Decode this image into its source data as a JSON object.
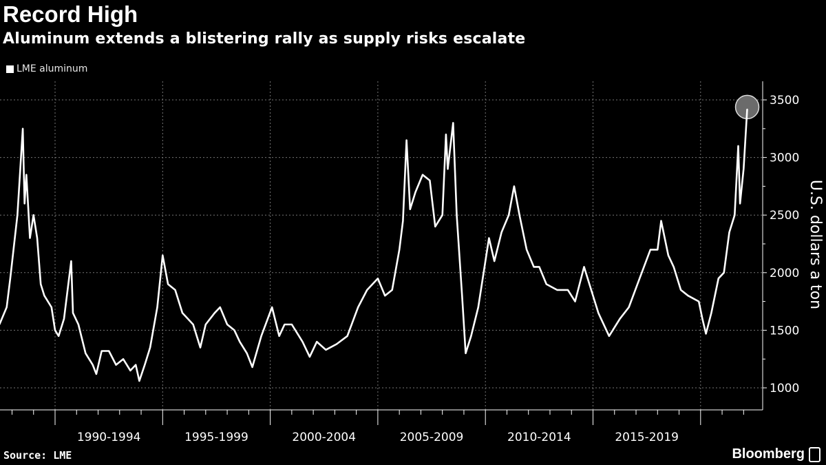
{
  "header": {
    "title": "Record High",
    "subtitle": "Aluminum extends a blistering rally as supply risks escalate"
  },
  "footer": {
    "source": "Source: LME",
    "brand": "Bloomberg"
  },
  "colors": {
    "background": "#000000",
    "line": "#ffffff",
    "highlight": "#6b6b6b",
    "grid": "#666666"
  },
  "chart_data": {
    "type": "line",
    "title": "Record High",
    "subtitle": "Aluminum extends a blistering rally as supply risks escalate",
    "xlabel": "",
    "ylabel": "U.S. dollars a ton",
    "ylim": [
      850,
      3650
    ],
    "yticks": [
      1000,
      1500,
      2000,
      2500,
      3000,
      3500
    ],
    "x_categories": [
      "1990-1994",
      "1995-1999",
      "2000-2004",
      "2005-2009",
      "2010-2014",
      "2015-2019"
    ],
    "grid": true,
    "legend": {
      "position": "top-left",
      "entries": [
        "LME aluminum"
      ]
    },
    "highlight": "last point (record high)",
    "series": [
      {
        "name": "LME aluminum",
        "points": [
          [
            "1987-06",
            1550
          ],
          [
            "1987-10",
            1700
          ],
          [
            "1987-12",
            1950
          ],
          [
            "1988-04",
            2500
          ],
          [
            "1988-07",
            3250
          ],
          [
            "1988-08",
            2600
          ],
          [
            "1988-09",
            2850
          ],
          [
            "1988-11",
            2300
          ],
          [
            "1989-01",
            2500
          ],
          [
            "1989-03",
            2300
          ],
          [
            "1989-05",
            1900
          ],
          [
            "1989-07",
            1800
          ],
          [
            "1989-11",
            1700
          ],
          [
            "1990-01",
            1500
          ],
          [
            "1990-03",
            1450
          ],
          [
            "1990-06",
            1600
          ],
          [
            "1990-10",
            2100
          ],
          [
            "1990-11",
            1650
          ],
          [
            "1991-02",
            1550
          ],
          [
            "1991-06",
            1300
          ],
          [
            "1991-10",
            1200
          ],
          [
            "1991-12",
            1120
          ],
          [
            "1992-03",
            1320
          ],
          [
            "1992-07",
            1320
          ],
          [
            "1992-11",
            1200
          ],
          [
            "1993-03",
            1250
          ],
          [
            "1993-07",
            1150
          ],
          [
            "1993-10",
            1200
          ],
          [
            "1993-12",
            1060
          ],
          [
            "1994-03",
            1200
          ],
          [
            "1994-06",
            1350
          ],
          [
            "1994-10",
            1700
          ],
          [
            "1995-01",
            2150
          ],
          [
            "1995-04",
            1900
          ],
          [
            "1995-08",
            1850
          ],
          [
            "1995-12",
            1650
          ],
          [
            "1996-06",
            1550
          ],
          [
            "1996-10",
            1350
          ],
          [
            "1997-01",
            1550
          ],
          [
            "1997-06",
            1650
          ],
          [
            "1997-09",
            1700
          ],
          [
            "1998-01",
            1550
          ],
          [
            "1998-05",
            1500
          ],
          [
            "1998-08",
            1400
          ],
          [
            "1998-12",
            1300
          ],
          [
            "1999-03",
            1180
          ],
          [
            "1999-08",
            1450
          ],
          [
            "2000-02",
            1700
          ],
          [
            "2000-06",
            1450
          ],
          [
            "2000-09",
            1550
          ],
          [
            "2001-01",
            1550
          ],
          [
            "2001-07",
            1400
          ],
          [
            "2001-11",
            1270
          ],
          [
            "2002-03",
            1400
          ],
          [
            "2002-08",
            1330
          ],
          [
            "2003-02",
            1380
          ],
          [
            "2003-08",
            1450
          ],
          [
            "2004-02",
            1700
          ],
          [
            "2004-07",
            1850
          ],
          [
            "2005-01",
            1950
          ],
          [
            "2005-05",
            1800
          ],
          [
            "2005-09",
            1850
          ],
          [
            "2006-01",
            2200
          ],
          [
            "2006-03",
            2450
          ],
          [
            "2006-05",
            3150
          ],
          [
            "2006-07",
            2550
          ],
          [
            "2006-10",
            2700
          ],
          [
            "2007-02",
            2850
          ],
          [
            "2007-06",
            2800
          ],
          [
            "2007-09",
            2400
          ],
          [
            "2008-01",
            2500
          ],
          [
            "2008-03",
            3200
          ],
          [
            "2008-04",
            2900
          ],
          [
            "2008-07",
            3300
          ],
          [
            "2008-09",
            2500
          ],
          [
            "2008-12",
            1800
          ],
          [
            "2009-02",
            1300
          ],
          [
            "2009-05",
            1450
          ],
          [
            "2009-09",
            1700
          ],
          [
            "2010-01",
            2100
          ],
          [
            "2010-03",
            2300
          ],
          [
            "2010-06",
            2100
          ],
          [
            "2010-10",
            2350
          ],
          [
            "2011-02",
            2500
          ],
          [
            "2011-05",
            2750
          ],
          [
            "2011-08",
            2500
          ],
          [
            "2011-12",
            2200
          ],
          [
            "2012-04",
            2050
          ],
          [
            "2012-07",
            2050
          ],
          [
            "2012-11",
            1900
          ],
          [
            "2013-05",
            1850
          ],
          [
            "2013-11",
            1850
          ],
          [
            "2014-03",
            1750
          ],
          [
            "2014-08",
            2050
          ],
          [
            "2014-12",
            1850
          ],
          [
            "2015-04",
            1650
          ],
          [
            "2015-10",
            1450
          ],
          [
            "2016-04",
            1600
          ],
          [
            "2016-09",
            1700
          ],
          [
            "2017-03",
            1950
          ],
          [
            "2017-09",
            2200
          ],
          [
            "2018-01",
            2200
          ],
          [
            "2018-03",
            2450
          ],
          [
            "2018-07",
            2150
          ],
          [
            "2018-10",
            2050
          ],
          [
            "2019-02",
            1850
          ],
          [
            "2019-06",
            1800
          ],
          [
            "2019-12",
            1750
          ],
          [
            "2020-02",
            1600
          ],
          [
            "2020-04",
            1470
          ],
          [
            "2020-07",
            1650
          ],
          [
            "2020-11",
            1950
          ],
          [
            "2021-02",
            2000
          ],
          [
            "2021-05",
            2350
          ],
          [
            "2021-08",
            2500
          ],
          [
            "2021-10",
            3100
          ],
          [
            "2021-11",
            2600
          ],
          [
            "2022-01",
            2900
          ],
          [
            "2022-03",
            3420
          ]
        ]
      }
    ]
  }
}
